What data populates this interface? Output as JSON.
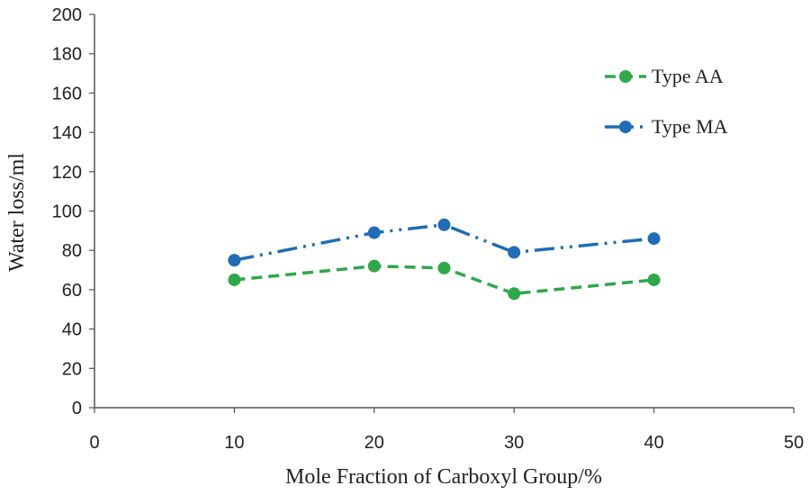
{
  "chart_data": {
    "type": "line",
    "title": "",
    "xlabel": "Mole Fraction of Carboxyl Group/%",
    "ylabel": "Water loss/ml",
    "xlim": [
      0,
      50
    ],
    "ylim": [
      0,
      200
    ],
    "xticks": [
      0,
      10,
      20,
      30,
      40,
      50
    ],
    "yticks": [
      0,
      20,
      40,
      60,
      80,
      100,
      120,
      140,
      160,
      180,
      200
    ],
    "grid": false,
    "legend_position": "top-right",
    "series": [
      {
        "name": "Type AA",
        "color": "#2ea84a",
        "line_style": "dashed",
        "x": [
          10,
          20,
          25,
          30,
          40
        ],
        "y": [
          65,
          72,
          71,
          58,
          65
        ]
      },
      {
        "name": "Type MA",
        "color": "#1f6db5",
        "line_style": "dash-dot-dot",
        "x": [
          10,
          20,
          25,
          30,
          40
        ],
        "y": [
          75,
          89,
          93,
          79,
          86
        ]
      }
    ]
  }
}
